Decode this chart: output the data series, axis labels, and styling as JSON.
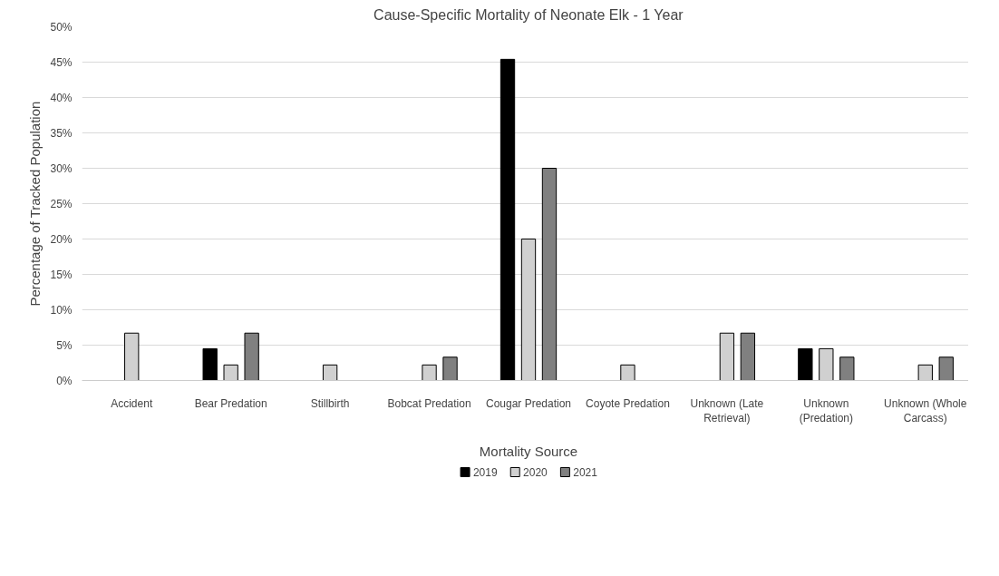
{
  "chart_data": {
    "type": "bar",
    "title": "Cause-Specific Mortality of Neonate Elk - 1 Year",
    "xlabel": "Mortality Source",
    "ylabel": "Percentage of Tracked Population",
    "categories": [
      "Accident",
      "Bear Predation",
      "Stillbirth",
      "Bobcat Predation",
      "Cougar Predation",
      "Coyote Predation",
      "Unknown (Late\nRetrieval)",
      "Unknown\n(Predation)",
      "Unknown (Whole\nCarcass)"
    ],
    "series": [
      {
        "name": "2019",
        "color": "#000000",
        "values": [
          0,
          4.5,
          0,
          0,
          45.4,
          0,
          0,
          4.5,
          0
        ]
      },
      {
        "name": "2020",
        "color": "#d0d0d0",
        "values": [
          6.7,
          2.2,
          2.2,
          2.2,
          20,
          2.2,
          6.7,
          4.5,
          2.2
        ]
      },
      {
        "name": "2021",
        "color": "#808080",
        "values": [
          0,
          6.7,
          0,
          3.3,
          30,
          0,
          6.7,
          3.3,
          3.3
        ]
      }
    ],
    "ylim": [
      0,
      50
    ],
    "yticks": [
      {
        "value": 0,
        "label": "0%"
      },
      {
        "value": 5,
        "label": "5%"
      },
      {
        "value": 10,
        "label": "10%"
      },
      {
        "value": 15,
        "label": "15%"
      },
      {
        "value": 20,
        "label": "20%"
      },
      {
        "value": 25,
        "label": "25%"
      },
      {
        "value": 30,
        "label": "30%"
      },
      {
        "value": 35,
        "label": "35%"
      },
      {
        "value": 40,
        "label": "40%"
      },
      {
        "value": 45,
        "label": "45%"
      },
      {
        "value": 50,
        "label": "50%"
      }
    ],
    "grid": "y",
    "legend": "bottom"
  }
}
